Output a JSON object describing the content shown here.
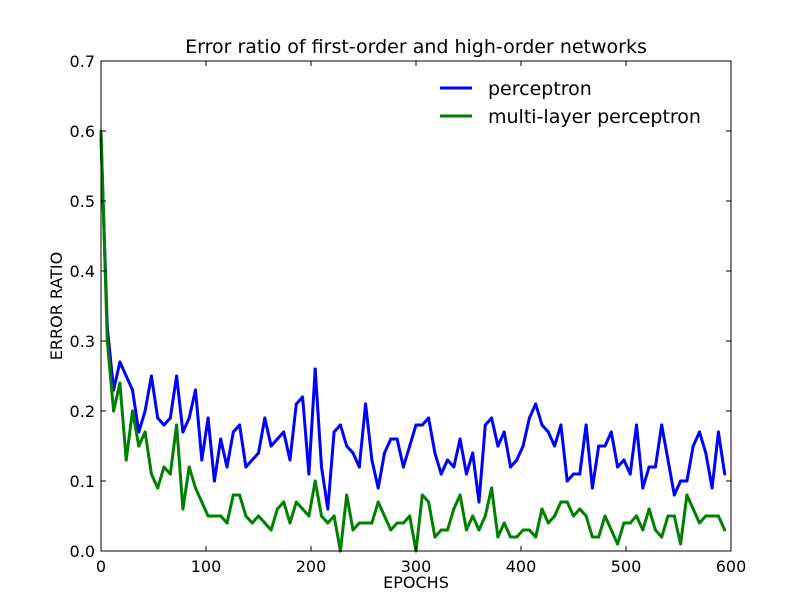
{
  "chart_data": {
    "type": "line",
    "title": "Error ratio of first-order and high-order networks",
    "xlabel": "EPOCHS",
    "ylabel": "ERROR RATIO",
    "xlim": [
      0,
      600
    ],
    "ylim": [
      0,
      0.7
    ],
    "xticks": [
      0,
      100,
      200,
      300,
      400,
      500,
      600
    ],
    "xtick_labels": [
      "0",
      "100",
      "200",
      "300",
      "400",
      "500",
      "600"
    ],
    "yticks": [
      0,
      0.1,
      0.2,
      0.3,
      0.4,
      0.5,
      0.6,
      0.7
    ],
    "ytick_labels": [
      "0.0",
      "0.1",
      "0.2",
      "0.3",
      "0.4",
      "0.5",
      "0.6",
      "0.7"
    ],
    "grid": false,
    "legend_position": "top-right",
    "x": [
      0,
      6,
      12,
      18,
      24,
      30,
      36,
      42,
      48,
      54,
      60,
      66,
      72,
      78,
      84,
      90,
      96,
      102,
      108,
      114,
      120,
      126,
      132,
      138,
      144,
      150,
      156,
      162,
      168,
      174,
      180,
      186,
      192,
      198,
      204,
      210,
      216,
      222,
      228,
      234,
      240,
      246,
      252,
      258,
      264,
      270,
      276,
      282,
      288,
      294,
      300,
      306,
      312,
      318,
      324,
      330,
      336,
      342,
      348,
      354,
      360,
      366,
      372,
      378,
      384,
      390,
      396,
      402,
      408,
      414,
      420,
      426,
      432,
      438,
      444,
      450,
      456,
      462,
      468,
      474,
      480,
      486,
      492,
      498,
      504,
      510,
      516,
      522,
      528,
      534,
      540,
      546,
      552,
      558,
      564,
      570,
      576,
      582,
      588,
      594
    ],
    "series": [
      {
        "name": "perceptron",
        "color": "#0000ff",
        "values": [
          0.59,
          0.32,
          0.23,
          0.27,
          0.25,
          0.23,
          0.17,
          0.2,
          0.25,
          0.19,
          0.18,
          0.19,
          0.25,
          0.17,
          0.19,
          0.23,
          0.13,
          0.19,
          0.1,
          0.16,
          0.12,
          0.17,
          0.18,
          0.12,
          0.13,
          0.14,
          0.19,
          0.15,
          0.16,
          0.17,
          0.13,
          0.21,
          0.22,
          0.11,
          0.26,
          0.12,
          0.06,
          0.17,
          0.18,
          0.15,
          0.14,
          0.12,
          0.21,
          0.13,
          0.09,
          0.14,
          0.16,
          0.16,
          0.12,
          0.15,
          0.18,
          0.18,
          0.19,
          0.14,
          0.11,
          0.13,
          0.12,
          0.16,
          0.11,
          0.14,
          0.07,
          0.18,
          0.19,
          0.15,
          0.17,
          0.12,
          0.13,
          0.15,
          0.19,
          0.21,
          0.18,
          0.17,
          0.15,
          0.18,
          0.1,
          0.11,
          0.11,
          0.18,
          0.09,
          0.15,
          0.15,
          0.17,
          0.12,
          0.13,
          0.11,
          0.18,
          0.09,
          0.12,
          0.12,
          0.18,
          0.13,
          0.08,
          0.1,
          0.1,
          0.15,
          0.17,
          0.14,
          0.09,
          0.17,
          0.11
        ]
      },
      {
        "name": "multi-layer perceptron",
        "color": "#008000",
        "values": [
          0.6,
          0.3,
          0.2,
          0.24,
          0.13,
          0.2,
          0.15,
          0.17,
          0.11,
          0.09,
          0.12,
          0.11,
          0.18,
          0.06,
          0.12,
          0.09,
          0.07,
          0.05,
          0.05,
          0.05,
          0.04,
          0.08,
          0.08,
          0.05,
          0.04,
          0.05,
          0.04,
          0.03,
          0.06,
          0.07,
          0.04,
          0.07,
          0.06,
          0.05,
          0.1,
          0.05,
          0.04,
          0.05,
          0.0,
          0.08,
          0.03,
          0.04,
          0.04,
          0.04,
          0.07,
          0.05,
          0.03,
          0.04,
          0.04,
          0.05,
          0.0,
          0.08,
          0.07,
          0.02,
          0.03,
          0.03,
          0.06,
          0.08,
          0.03,
          0.05,
          0.03,
          0.05,
          0.09,
          0.02,
          0.04,
          0.02,
          0.02,
          0.03,
          0.03,
          0.02,
          0.06,
          0.04,
          0.05,
          0.07,
          0.07,
          0.05,
          0.06,
          0.05,
          0.02,
          0.02,
          0.05,
          0.03,
          0.01,
          0.04,
          0.04,
          0.05,
          0.03,
          0.06,
          0.03,
          0.02,
          0.05,
          0.05,
          0.01,
          0.08,
          0.06,
          0.04,
          0.05,
          0.05,
          0.05,
          0.03
        ]
      }
    ]
  }
}
